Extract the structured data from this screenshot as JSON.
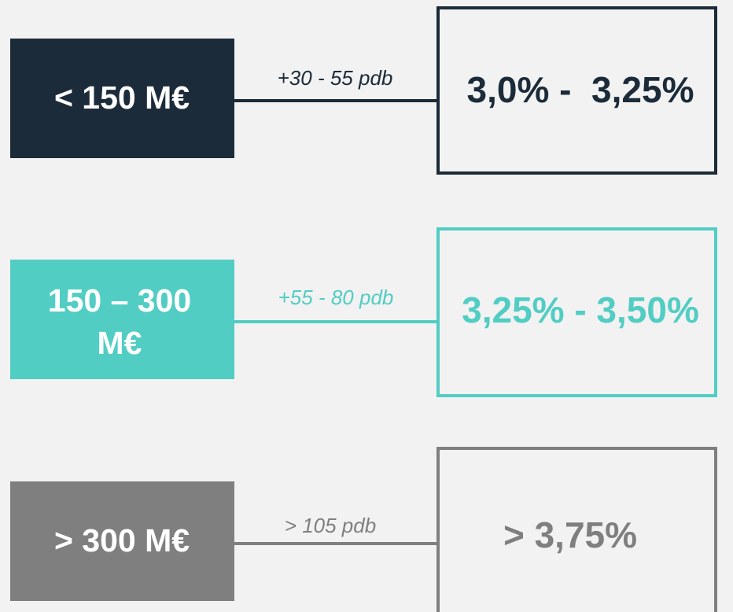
{
  "rows": [
    {
      "label_lines": [
        "< 150 M€"
      ],
      "connector": "+30 - 55 pdb",
      "range": "3,0% -  3,25%"
    },
    {
      "label_lines": [
        "150 – 300",
        "M€"
      ],
      "connector": "+55 - 80 pdb",
      "range": "3,25% - 3,50%"
    },
    {
      "label_lines": [
        "> 300 M€"
      ],
      "connector": "> 105 pdb",
      "range": "> 3,75%"
    }
  ]
}
